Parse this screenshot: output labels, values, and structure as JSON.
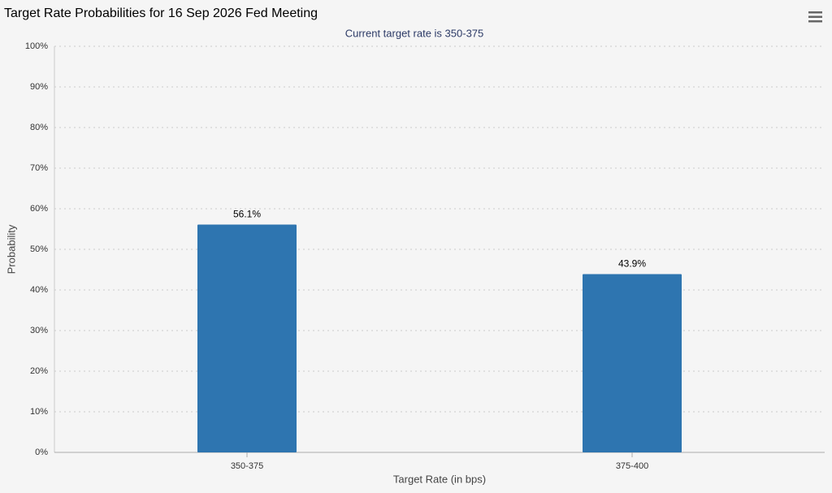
{
  "chart_data": {
    "type": "bar",
    "title": "Target Rate Probabilities for 16 Sep 2026 Fed Meeting",
    "subtitle": "Current target rate is 350-375",
    "x_label": "Target Rate (in bps)",
    "y_label": "Probability",
    "categories": [
      "350-375",
      "375-400"
    ],
    "values": [
      56.1,
      43.9
    ],
    "value_labels": [
      "56.1%",
      "43.9%"
    ],
    "color": "#2e75b0",
    "ylim": [
      0,
      100
    ],
    "yticks": [
      {
        "value": 0,
        "label": "0%"
      },
      {
        "value": 10,
        "label": "10%"
      },
      {
        "value": 20,
        "label": "20%"
      },
      {
        "value": 30,
        "label": "30%"
      },
      {
        "value": 40,
        "label": "40%"
      },
      {
        "value": 50,
        "label": "50%"
      },
      {
        "value": 60,
        "label": "60%"
      },
      {
        "value": 70,
        "label": "70%"
      },
      {
        "value": 80,
        "label": "80%"
      },
      {
        "value": 90,
        "label": "90%"
      },
      {
        "value": 100,
        "label": "100%"
      }
    ],
    "grid": true
  }
}
